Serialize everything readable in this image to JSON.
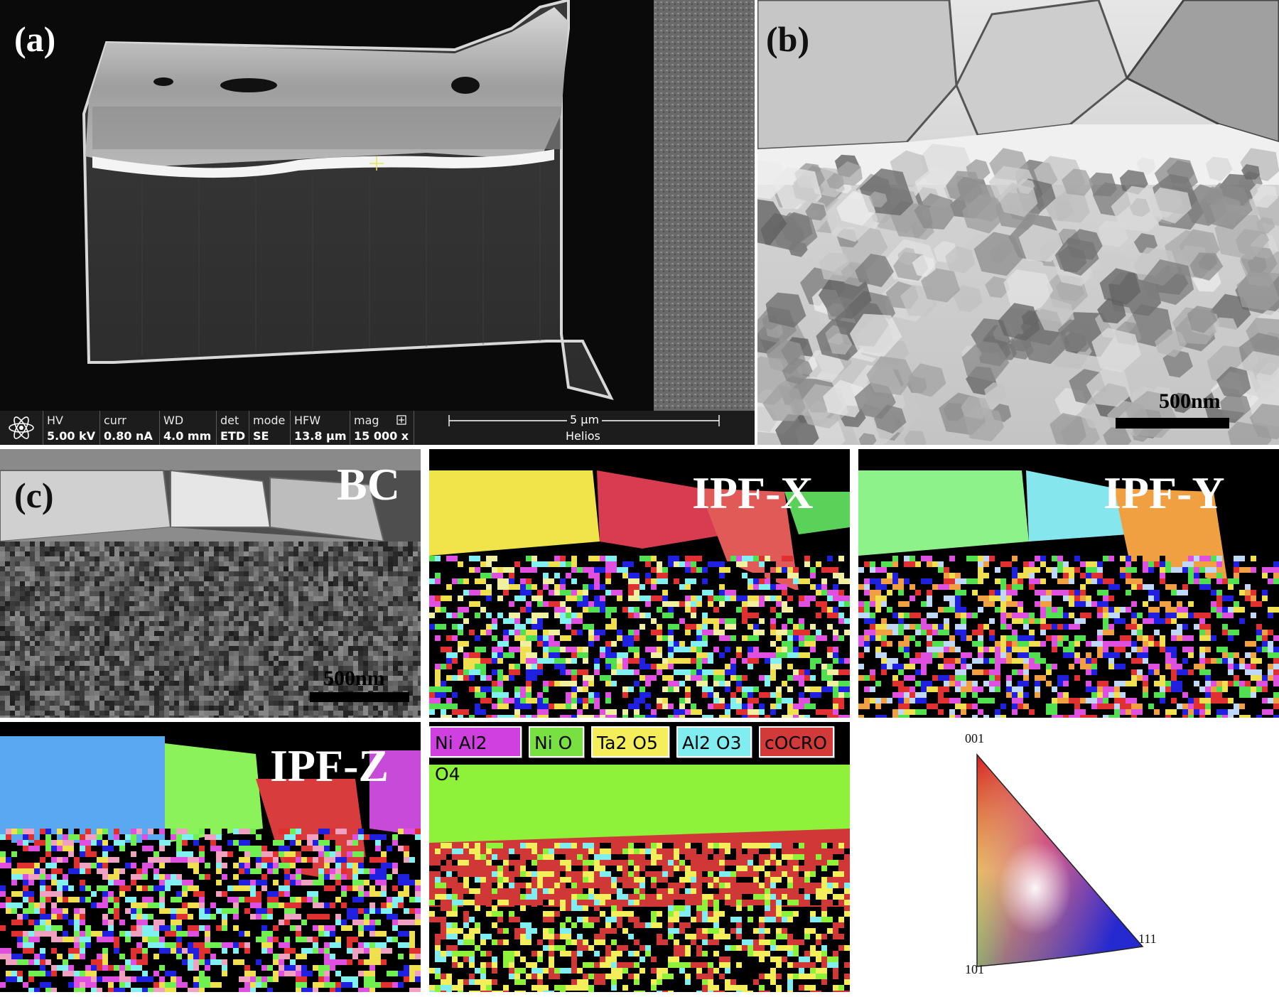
{
  "panels": {
    "a": {
      "label": "(a)"
    },
    "b": {
      "label": "(b)",
      "scale": "500nm"
    },
    "c": {
      "label": "(c)",
      "scale": "500nm"
    }
  },
  "maps": {
    "bc": "BC",
    "ipf_x": "IPF-X",
    "ipf_y": "IPF-Y",
    "ipf_z": "IPF-Z"
  },
  "sem_databar": {
    "fields": [
      {
        "key": "HV",
        "value": "5.00 kV"
      },
      {
        "key": "curr",
        "value": "0.80 nA"
      },
      {
        "key": "WD",
        "value": "4.0 mm"
      },
      {
        "key": "det",
        "value": "ETD"
      },
      {
        "key": "mode",
        "value": "SE"
      },
      {
        "key": "HFW",
        "value": "13.8 µm"
      },
      {
        "key": "mag",
        "value": "15 000 x"
      }
    ],
    "scale_label": "5 µm",
    "instrument": "Helios",
    "icons": [
      "atom-icon",
      "expand-icon"
    ]
  },
  "phase_legend": [
    {
      "label": "Ni Al2 O4",
      "color": "#d040e0"
    },
    {
      "label": "Ni O",
      "color": "#78e040"
    },
    {
      "label": "Ta2 O5",
      "color": "#f4ee5a"
    },
    {
      "label": "Al2 O3",
      "color": "#80eef0"
    },
    {
      "label": "cOCRO",
      "color": "#d23a3a"
    }
  ],
  "ipf_key": {
    "corners": [
      "001",
      "101",
      "111"
    ]
  }
}
